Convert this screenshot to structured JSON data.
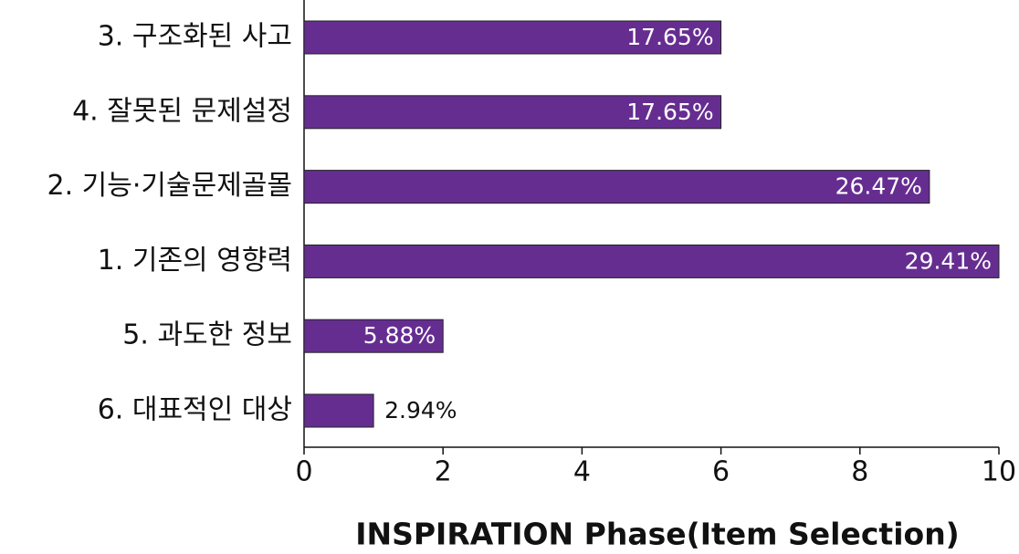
{
  "chart_data": {
    "type": "barh",
    "categories": [
      "3. 구조화된 사고",
      "4. 잘못된 문제설정",
      "2. 기능·기술문제골몰",
      "1. 기존의 영향력",
      "5. 과도한 정보",
      "6. 대표적인 대상"
    ],
    "values": [
      6,
      6,
      9,
      10,
      2,
      1
    ],
    "value_labels": [
      "17.65%",
      "17.65%",
      "26.47%",
      "29.41%",
      "5.88%",
      "2.94%"
    ],
    "color": "#662d91",
    "xlabel": "INSPIRATION Phase(Item Selection)",
    "xlim": [
      0,
      10
    ],
    "xticks": [
      0,
      2,
      4,
      6,
      8,
      10
    ]
  }
}
